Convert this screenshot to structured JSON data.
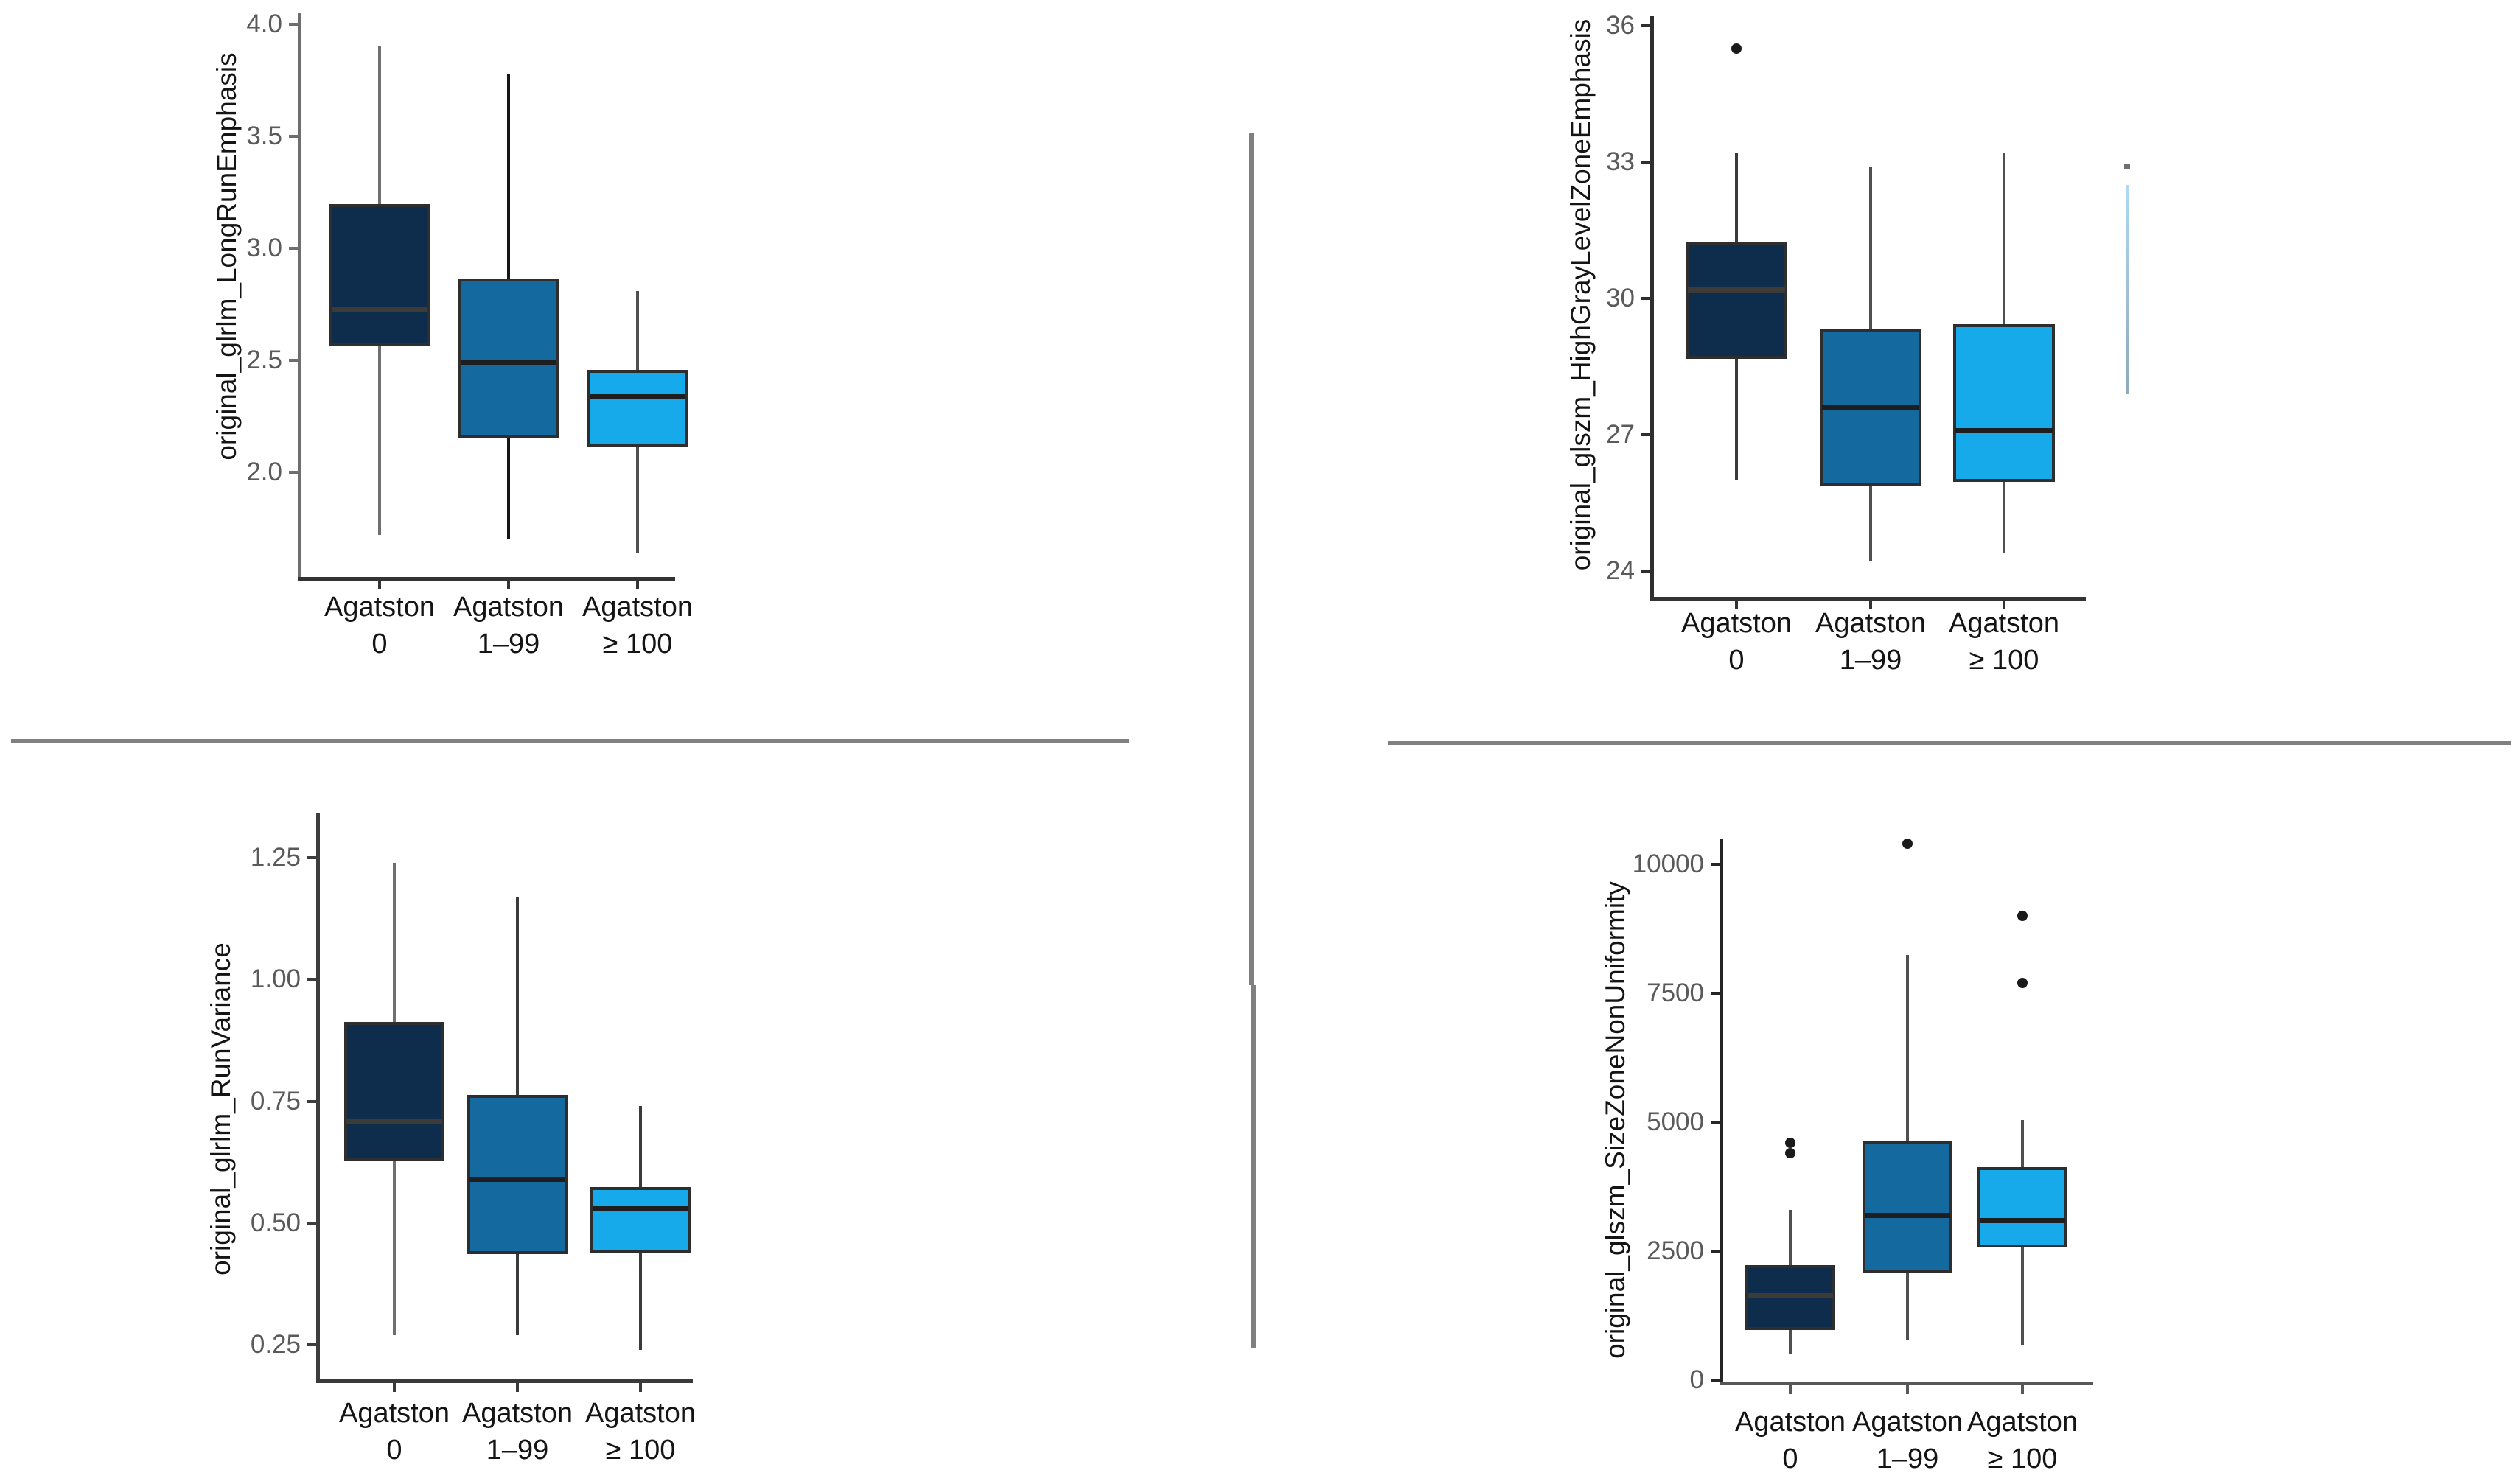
{
  "figure": {
    "background": "#ffffff",
    "description": "Four box plots of radiomic features grouped by Agatston score category",
    "groups_row1": [
      "Agatston",
      "Agatston",
      "Agatston"
    ],
    "groups_row2": [
      "0",
      "1–99",
      "≥ 100"
    ]
  },
  "colors": {
    "agatston_0_fill": "#0e2c4c",
    "agatston_1_99_fill": "#146a9e",
    "agatston_ge_100_fill": "#17aaea",
    "box_border": "#2e2e2e",
    "median_on_dark": "#3d3b37",
    "median": "#1e1e1e",
    "whisker": "#4f4f4f",
    "outlier": "#1a1a1a",
    "tick_label": "#5a5a5a",
    "axis_label": "#141414",
    "divider": "#808080",
    "artifact_line_top": "#aed8f5",
    "artifact_line_bottom": "#8fa9bc",
    "artifact_dot": "#6f6f6f"
  },
  "chart_data": [
    {
      "type": "box",
      "panel": "top-left",
      "title": "",
      "xlabel": "",
      "ylabel": "original_glrlm_LongRunEmphasis",
      "ylim": [
        1.6,
        4.05
      ],
      "grid": false,
      "legend": "none",
      "yticks": [
        {
          "label": "4.0",
          "v": 4.0
        },
        {
          "label": "3.5",
          "v": 3.5
        },
        {
          "label": "3.0",
          "v": 3.0
        },
        {
          "label": "2.5",
          "v": 2.5
        },
        {
          "label": "2.0",
          "v": 2.0
        }
      ],
      "categories": [
        "Agatston 0",
        "Agatston 1–99",
        "Agatston ≥ 100"
      ],
      "boxes": [
        {
          "group": "Agatston 0",
          "low": 1.72,
          "q1": 2.57,
          "median": 2.73,
          "q3": 3.19,
          "high": 3.9,
          "outliers": [],
          "whisker_color": "#6f6f6f"
        },
        {
          "group": "Agatston 1–99",
          "low": 1.7,
          "q1": 2.16,
          "median": 2.49,
          "q3": 2.86,
          "high": 3.78,
          "outliers": [],
          "whisker_color": "#161616"
        },
        {
          "group": "Agatston ≥ 100",
          "low": 1.64,
          "q1": 2.12,
          "median": 2.34,
          "q3": 2.45,
          "high": 2.81,
          "outliers": [],
          "whisker_color": "#4f4f4f"
        }
      ]
    },
    {
      "type": "box",
      "panel": "top-right",
      "title": "",
      "xlabel": "",
      "ylabel": "original_glszm_HighGrayLevelZoneEmphasis",
      "ylim": [
        24,
        36
      ],
      "grid": false,
      "legend": "none",
      "yticks": [
        {
          "label": "36",
          "v": 36
        },
        {
          "label": "33",
          "v": 33
        },
        {
          "label": "30",
          "v": 30
        },
        {
          "label": "27",
          "v": 27
        },
        {
          "label": "24",
          "v": 24
        }
      ],
      "categories": [
        "Agatston 0",
        "Agatston 1–99",
        "Agatston ≥ 100"
      ],
      "boxes": [
        {
          "group": "Agatston 0",
          "low": 26.0,
          "q1": 28.7,
          "median": 30.2,
          "q3": 31.2,
          "high": 33.2,
          "outliers": [
            35.5
          ],
          "whisker_color": "#3a3a3a"
        },
        {
          "group": "Agatston 1–99",
          "low": 24.2,
          "q1": 25.9,
          "median": 27.6,
          "q3": 29.3,
          "high": 32.9,
          "outliers": [],
          "whisker_color": "#4f4f4f"
        },
        {
          "group": "Agatston ≥ 100",
          "low": 24.4,
          "q1": 26.0,
          "median": 27.1,
          "q3": 29.4,
          "high": 33.2,
          "outliers": [],
          "whisker_color": "#4f4f4f"
        }
      ],
      "artifact_whisker": {
        "high": 32.5,
        "low": 27.9,
        "dot": 32.9
      }
    },
    {
      "type": "box",
      "panel": "bottom-left",
      "title": "",
      "xlabel": "",
      "ylabel": "original_glrlm_RunVariance",
      "ylim": [
        0.22,
        1.26
      ],
      "grid": false,
      "legend": "none",
      "yticks": [
        {
          "label": "1.25",
          "v": 1.25
        },
        {
          "label": "1.00",
          "v": 1.0
        },
        {
          "label": "0.75",
          "v": 0.75
        },
        {
          "label": "0.50",
          "v": 0.5
        },
        {
          "label": "0.25",
          "v": 0.25
        }
      ],
      "categories": [
        "Agatston 0",
        "Agatston 1–99",
        "Agatston ≥ 100"
      ],
      "boxes": [
        {
          "group": "Agatston 0",
          "low": 0.27,
          "q1": 0.63,
          "median": 0.71,
          "q3": 0.91,
          "high": 1.24,
          "outliers": [],
          "whisker_color": "#6f6f6f"
        },
        {
          "group": "Agatston 1–99",
          "low": 0.27,
          "q1": 0.44,
          "median": 0.59,
          "q3": 0.76,
          "high": 1.17,
          "outliers": [],
          "whisker_color": "#3a3a3a"
        },
        {
          "group": "Agatston ≥ 100",
          "low": 0.24,
          "q1": 0.44,
          "median": 0.53,
          "q3": 0.57,
          "high": 0.74,
          "outliers": [],
          "whisker_color": "#3a3a3a"
        }
      ]
    },
    {
      "type": "box",
      "panel": "bottom-right",
      "title": "",
      "xlabel": "",
      "ylabel": "original_glszm_SizeZoneNonUniformity",
      "ylim": [
        0,
        10500
      ],
      "grid": false,
      "legend": "none",
      "yticks": [
        {
          "label": "10000",
          "v": 10000
        },
        {
          "label": "7500",
          "v": 7500
        },
        {
          "label": "5000",
          "v": 5000
        },
        {
          "label": "2500",
          "v": 2500
        },
        {
          "label": "0",
          "v": 0
        }
      ],
      "categories": [
        "Agatston 0",
        "Agatston 1–99",
        "Agatston ≥ 100"
      ],
      "boxes": [
        {
          "group": "Agatston 0",
          "low": 500,
          "q1": 1000,
          "median": 1650,
          "q3": 2200,
          "high": 3300,
          "outliers": [
            4600,
            4400
          ],
          "whisker_color": "#4f4f4f"
        },
        {
          "group": "Agatston 1–99",
          "low": 800,
          "q1": 2100,
          "median": 3200,
          "q3": 4600,
          "high": 8250,
          "outliers": [
            10400
          ],
          "whisker_color": "#4f4f4f"
        },
        {
          "group": "Agatston ≥ 100",
          "low": 700,
          "q1": 2600,
          "median": 3100,
          "q3": 4100,
          "high": 5050,
          "outliers": [
            9000,
            7700
          ],
          "whisker_color": "#4f4f4f"
        }
      ]
    }
  ]
}
